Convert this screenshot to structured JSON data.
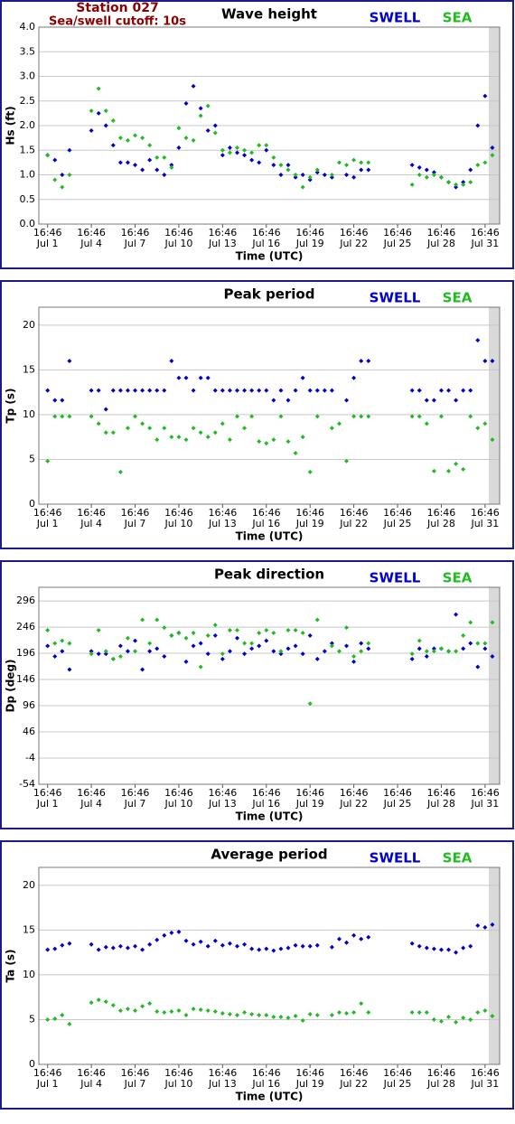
{
  "header": {
    "station": "Station 027",
    "cutoff": "Sea/swell cutoff: 10s"
  },
  "chart_data": [
    {
      "type": "scatter",
      "title": "Wave height",
      "x_label": "Time (UTC)",
      "y_label": "Hs (ft)",
      "x": [
        0,
        0.5,
        1,
        1.5,
        3,
        3.5,
        4,
        4.5,
        5,
        5.5,
        6,
        6.5,
        7,
        7.5,
        8,
        8.5,
        9,
        9.5,
        10,
        10.5,
        11,
        11.5,
        12,
        12.5,
        13,
        13.5,
        14,
        14.5,
        15,
        15.5,
        16,
        16.5,
        17,
        17.5,
        18,
        18.5,
        19,
        19.5,
        20,
        20.5,
        21,
        21.5,
        22,
        25,
        25.5,
        26,
        26.5,
        27,
        27.5,
        28,
        28.5,
        29,
        29.5,
        30,
        30.5
      ],
      "xlim": [
        -0.6,
        31
      ],
      "xticks": [
        {
          "value": 0,
          "label": "16:46"
        },
        {
          "value": 3,
          "label": "16:46"
        },
        {
          "value": 6,
          "label": "16:46"
        },
        {
          "value": 9,
          "label": "16:46"
        },
        {
          "value": 12,
          "label": "16:46"
        },
        {
          "value": 15,
          "label": "16:46"
        },
        {
          "value": 18,
          "label": "16:46"
        },
        {
          "value": 21,
          "label": "16:46"
        },
        {
          "value": 24,
          "label": "16:46"
        },
        {
          "value": 27,
          "label": "16:46"
        },
        {
          "value": 30,
          "label": "16:46"
        }
      ],
      "xtick_dates": [
        "Jul 1",
        "Jul 4",
        "Jul 7",
        "Jul 10",
        "Jul 13",
        "Jul 16",
        "Jul 19",
        "Jul 22",
        "Jul 25",
        "Jul 28",
        "Jul 31"
      ],
      "ylim": [
        0,
        4
      ],
      "yticks": [
        {
          "value": 0,
          "label": "0.0"
        },
        {
          "value": 0.5,
          "label": "0.5"
        },
        {
          "value": 1,
          "label": "1.0"
        },
        {
          "value": 1.5,
          "label": "1.5"
        },
        {
          "value": 2,
          "label": "2.0"
        },
        {
          "value": 2.5,
          "label": "2.5"
        },
        {
          "value": 3,
          "label": "3.0"
        },
        {
          "value": 3.5,
          "label": "3.5"
        },
        {
          "value": 4,
          "label": "4.0"
        }
      ],
      "grid": true,
      "series": [
        {
          "name": "SWELL",
          "color": "#0000cc",
          "values": [
            1.4,
            1.3,
            1.0,
            1.5,
            1.9,
            2.25,
            2.0,
            1.6,
            1.25,
            1.25,
            1.2,
            1.1,
            1.3,
            1.1,
            1.0,
            1.2,
            1.55,
            2.45,
            2.8,
            2.35,
            1.9,
            2.0,
            1.4,
            1.55,
            1.45,
            1.4,
            1.3,
            1.25,
            1.5,
            1.2,
            1.0,
            1.2,
            0.95,
            1.0,
            0.9,
            1.05,
            1.0,
            0.95,
            null,
            1.0,
            0.95,
            1.1,
            1.1,
            1.2,
            1.15,
            1.1,
            1.05,
            0.95,
            0.85,
            0.75,
            0.85,
            1.1,
            2.0,
            2.6,
            1.55
          ]
        },
        {
          "name": "SEA",
          "color": "#22bb22",
          "values": [
            1.4,
            0.9,
            0.75,
            1.0,
            2.3,
            2.75,
            2.3,
            2.1,
            1.75,
            1.7,
            1.8,
            1.75,
            1.6,
            1.35,
            1.35,
            1.15,
            1.95,
            1.75,
            1.7,
            2.2,
            2.4,
            1.85,
            1.5,
            1.45,
            1.55,
            1.5,
            1.45,
            1.6,
            1.6,
            1.35,
            1.2,
            1.1,
            1.0,
            0.75,
            0.95,
            1.1,
            null,
            1.0,
            1.25,
            1.2,
            1.3,
            1.25,
            1.25,
            0.8,
            1.0,
            0.95,
            1.0,
            0.95,
            0.85,
            0.8,
            0.8,
            0.85,
            1.2,
            1.25,
            1.4
          ]
        }
      ]
    },
    {
      "type": "scatter",
      "title": "Peak period",
      "x_label": "Time (UTC)",
      "y_label": "Tp (s)",
      "x": [
        0,
        0.5,
        1,
        1.5,
        3,
        3.5,
        4,
        4.5,
        5,
        5.5,
        6,
        6.5,
        7,
        7.5,
        8,
        8.5,
        9,
        9.5,
        10,
        10.5,
        11,
        11.5,
        12,
        12.5,
        13,
        13.5,
        14,
        14.5,
        15,
        15.5,
        16,
        16.5,
        17,
        17.5,
        18,
        18.5,
        19,
        19.5,
        20,
        20.5,
        21,
        21.5,
        22,
        25,
        25.5,
        26,
        26.5,
        27,
        27.5,
        28,
        28.5,
        29,
        29.5,
        30,
        30.5
      ],
      "xlim": [
        -0.6,
        31
      ],
      "xticks": [
        {
          "value": 0,
          "label": "16:46"
        },
        {
          "value": 3,
          "label": "16:46"
        },
        {
          "value": 6,
          "label": "16:46"
        },
        {
          "value": 9,
          "label": "16:46"
        },
        {
          "value": 12,
          "label": "16:46"
        },
        {
          "value": 15,
          "label": "16:46"
        },
        {
          "value": 18,
          "label": "16:46"
        },
        {
          "value": 21,
          "label": "16:46"
        },
        {
          "value": 24,
          "label": "16:46"
        },
        {
          "value": 27,
          "label": "16:46"
        },
        {
          "value": 30,
          "label": "16:46"
        }
      ],
      "xtick_dates": [
        "Jul 1",
        "Jul 4",
        "Jul 7",
        "Jul 10",
        "Jul 13",
        "Jul 16",
        "Jul 19",
        "Jul 22",
        "Jul 25",
        "Jul 28",
        "Jul 31"
      ],
      "ylim": [
        0,
        22
      ],
      "yticks": [
        0,
        5,
        10,
        15,
        20
      ],
      "grid": true,
      "series": [
        {
          "name": "SWELL",
          "color": "#0000cc",
          "values": [
            12.7,
            11.6,
            11.6,
            16,
            12.7,
            12.7,
            10.6,
            12.7,
            12.7,
            12.7,
            12.7,
            12.7,
            12.7,
            12.7,
            12.7,
            16,
            14.1,
            14.1,
            12.7,
            14.1,
            14.1,
            12.7,
            12.7,
            12.7,
            12.7,
            12.7,
            12.7,
            12.7,
            12.7,
            11.6,
            12.7,
            11.6,
            12.7,
            14.1,
            12.7,
            12.7,
            12.7,
            12.7,
            null,
            11.6,
            14.1,
            16,
            16,
            12.7,
            12.7,
            11.6,
            11.6,
            12.7,
            12.7,
            11.6,
            12.7,
            12.7,
            18.3,
            16,
            16
          ]
        },
        {
          "name": "SEA",
          "color": "#22bb22",
          "values": [
            4.8,
            9.8,
            9.8,
            9.8,
            9.8,
            9.0,
            8.0,
            8.0,
            3.6,
            8.5,
            9.8,
            9.0,
            8.5,
            7.2,
            8.5,
            7.5,
            7.5,
            7.2,
            8.5,
            8.0,
            7.5,
            8.0,
            9.0,
            7.2,
            9.8,
            8.5,
            9.8,
            7.0,
            6.8,
            7.2,
            9.8,
            7.0,
            5.7,
            7.5,
            3.6,
            9.8,
            null,
            8.5,
            9.0,
            4.8,
            9.8,
            9.8,
            9.8,
            9.8,
            9.8,
            9.0,
            3.7,
            9.8,
            3.7,
            4.5,
            3.9,
            9.8,
            8.5,
            9.0,
            7.2
          ]
        }
      ]
    },
    {
      "type": "scatter",
      "title": "Peak direction",
      "x_label": "Time (UTC)",
      "y_label": "Dp (deg)",
      "x": [
        0,
        0.5,
        1,
        1.5,
        3,
        3.5,
        4,
        4.5,
        5,
        5.5,
        6,
        6.5,
        7,
        7.5,
        8,
        8.5,
        9,
        9.5,
        10,
        10.5,
        11,
        11.5,
        12,
        12.5,
        13,
        13.5,
        14,
        14.5,
        15,
        15.5,
        16,
        16.5,
        17,
        17.5,
        18,
        18.5,
        19,
        19.5,
        20,
        20.5,
        21,
        21.5,
        22,
        25,
        25.5,
        26,
        26.5,
        27,
        27.5,
        28,
        28.5,
        29,
        29.5,
        30,
        30.5
      ],
      "xlim": [
        -0.6,
        31
      ],
      "xticks": [
        {
          "value": 0,
          "label": "16:46"
        },
        {
          "value": 3,
          "label": "16:46"
        },
        {
          "value": 6,
          "label": "16:46"
        },
        {
          "value": 9,
          "label": "16:46"
        },
        {
          "value": 12,
          "label": "16:46"
        },
        {
          "value": 15,
          "label": "16:46"
        },
        {
          "value": 18,
          "label": "16:46"
        },
        {
          "value": 21,
          "label": "16:46"
        },
        {
          "value": 24,
          "label": "16:46"
        },
        {
          "value": 27,
          "label": "16:46"
        },
        {
          "value": 30,
          "label": "16:46"
        }
      ],
      "xtick_dates": [
        "Jul 1",
        "Jul 4",
        "Jul 7",
        "Jul 10",
        "Jul 13",
        "Jul 16",
        "Jul 19",
        "Jul 22",
        "Jul 25",
        "Jul 28",
        "Jul 31"
      ],
      "ylim": [
        -54,
        322
      ],
      "yticks": [
        -54,
        -4,
        46,
        96,
        146,
        196,
        246,
        296
      ],
      "grid": true,
      "series": [
        {
          "name": "SWELL",
          "color": "#0000cc",
          "values": [
            210,
            190,
            200,
            165,
            200,
            195,
            195,
            185,
            210,
            200,
            220,
            165,
            200,
            205,
            190,
            230,
            235,
            180,
            210,
            215,
            195,
            230,
            185,
            200,
            225,
            195,
            205,
            210,
            220,
            200,
            195,
            205,
            210,
            195,
            230,
            185,
            200,
            215,
            null,
            210,
            180,
            215,
            205,
            185,
            205,
            190,
            205,
            205,
            200,
            270,
            205,
            215,
            170,
            205,
            190
          ]
        },
        {
          "name": "SEA",
          "color": "#22bb22",
          "values": [
            240,
            215,
            220,
            215,
            195,
            240,
            200,
            185,
            190,
            225,
            200,
            260,
            215,
            260,
            245,
            230,
            235,
            225,
            235,
            170,
            230,
            250,
            195,
            240,
            240,
            215,
            215,
            235,
            240,
            235,
            200,
            240,
            240,
            235,
            100,
            260,
            null,
            210,
            200,
            245,
            190,
            200,
            215,
            195,
            220,
            200,
            200,
            205,
            200,
            200,
            230,
            255,
            215,
            215,
            255
          ]
        }
      ]
    },
    {
      "type": "scatter",
      "title": "Average period",
      "x_label": "Time (UTC)",
      "y_label": "Ta (s)",
      "x": [
        0,
        0.5,
        1,
        1.5,
        3,
        3.5,
        4,
        4.5,
        5,
        5.5,
        6,
        6.5,
        7,
        7.5,
        8,
        8.5,
        9,
        9.5,
        10,
        10.5,
        11,
        11.5,
        12,
        12.5,
        13,
        13.5,
        14,
        14.5,
        15,
        15.5,
        16,
        16.5,
        17,
        17.5,
        18,
        18.5,
        19,
        19.5,
        20,
        20.5,
        21,
        21.5,
        22,
        25,
        25.5,
        26,
        26.5,
        27,
        27.5,
        28,
        28.5,
        29,
        29.5,
        30,
        30.5
      ],
      "xlim": [
        -0.6,
        31
      ],
      "xticks": [
        {
          "value": 0,
          "label": "16:46"
        },
        {
          "value": 3,
          "label": "16:46"
        },
        {
          "value": 6,
          "label": "16:46"
        },
        {
          "value": 9,
          "label": "16:46"
        },
        {
          "value": 12,
          "label": "16:46"
        },
        {
          "value": 15,
          "label": "16:46"
        },
        {
          "value": 18,
          "label": "16:46"
        },
        {
          "value": 21,
          "label": "16:46"
        },
        {
          "value": 24,
          "label": "16:46"
        },
        {
          "value": 27,
          "label": "16:46"
        },
        {
          "value": 30,
          "label": "16:46"
        }
      ],
      "xtick_dates": [
        "Jul 1",
        "Jul 4",
        "Jul 7",
        "Jul 10",
        "Jul 13",
        "Jul 16",
        "Jul 19",
        "Jul 22",
        "Jul 25",
        "Jul 28",
        "Jul 31"
      ],
      "ylim": [
        0,
        22
      ],
      "yticks": [
        0,
        5,
        10,
        15,
        20
      ],
      "grid": true,
      "series": [
        {
          "name": "SWELL",
          "color": "#0000cc",
          "values": [
            12.8,
            12.9,
            13.3,
            13.5,
            13.4,
            12.8,
            13.1,
            13.0,
            13.2,
            13.0,
            13.2,
            12.8,
            13.4,
            13.9,
            14.4,
            14.7,
            14.8,
            13.8,
            13.4,
            13.7,
            13.2,
            13.8,
            13.3,
            13.5,
            13.2,
            13.4,
            12.9,
            12.8,
            12.9,
            12.7,
            12.9,
            13.0,
            13.3,
            13.2,
            13.2,
            13.3,
            null,
            13.1,
            14.0,
            13.6,
            14.4,
            14.0,
            14.2,
            13.5,
            13.2,
            13.0,
            12.9,
            12.8,
            12.8,
            12.5,
            13.0,
            13.2,
            15.5,
            15.3,
            15.6
          ]
        },
        {
          "name": "SEA",
          "color": "#22bb22",
          "values": [
            5.0,
            5.1,
            5.5,
            4.5,
            6.9,
            7.2,
            7.0,
            6.6,
            6.0,
            6.2,
            6.0,
            6.5,
            6.8,
            5.9,
            5.8,
            5.9,
            6.0,
            5.5,
            6.2,
            6.1,
            6.0,
            5.9,
            5.7,
            5.6,
            5.5,
            5.8,
            5.6,
            5.5,
            5.5,
            5.3,
            5.3,
            5.2,
            5.4,
            4.9,
            5.6,
            5.5,
            null,
            5.5,
            5.8,
            5.7,
            5.8,
            6.8,
            5.8,
            5.8,
            5.8,
            5.8,
            5.0,
            4.8,
            5.3,
            4.7,
            5.2,
            5.0,
            5.8,
            6.0,
            5.4
          ]
        }
      ]
    }
  ]
}
